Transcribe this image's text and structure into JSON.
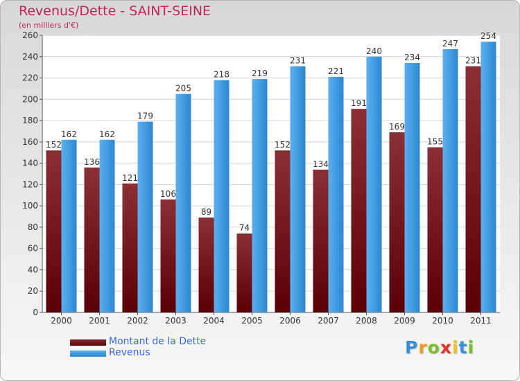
{
  "chart_data": {
    "type": "bar",
    "title": "Revenus/Dette - SAINT-SEINE",
    "subtitle": "(en milliers d'€)",
    "categories": [
      "2000",
      "2001",
      "2002",
      "2003",
      "2004",
      "2005",
      "2006",
      "2007",
      "2008",
      "2009",
      "2010",
      "2011"
    ],
    "series": [
      {
        "name": "Montant de la Dette",
        "values": [
          152,
          136,
          121,
          106,
          89,
          74,
          152,
          134,
          191,
          169,
          155,
          231
        ],
        "color": "#6e0f12"
      },
      {
        "name": "Revenus",
        "values": [
          162,
          162,
          179,
          205,
          218,
          219,
          231,
          221,
          240,
          234,
          247,
          254
        ],
        "color": "#3f9be0"
      }
    ],
    "ylim": [
      0,
      260
    ],
    "yticks": [
      0,
      20,
      40,
      60,
      80,
      100,
      120,
      140,
      160,
      180,
      200,
      220,
      240,
      260
    ],
    "grid": true,
    "legend": "bottom-left"
  },
  "logo": {
    "letters": [
      "P",
      "r",
      "o",
      "x",
      "i",
      "t",
      "i"
    ],
    "colors": [
      "#3a8fd9",
      "#f29a1b",
      "#7bbf2a",
      "#e0342b",
      "#f2c21b",
      "#3a8fd9",
      "#7bbf2a"
    ]
  }
}
